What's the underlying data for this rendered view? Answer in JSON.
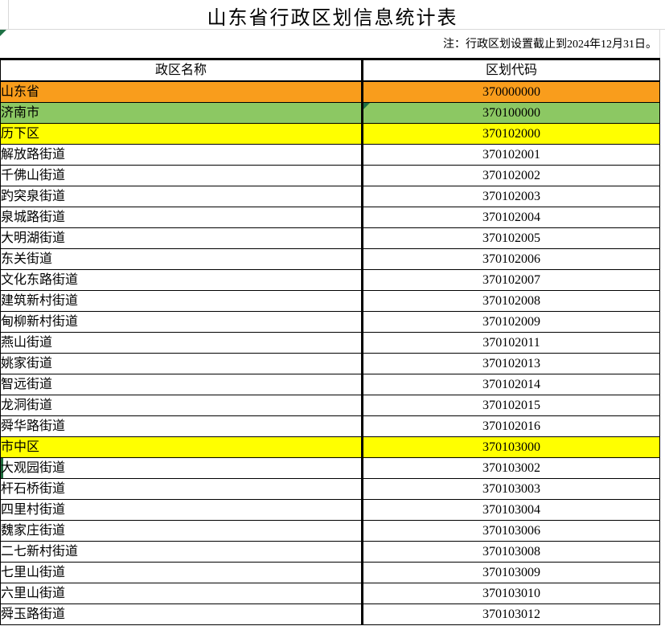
{
  "page": {
    "title": "山东省行政区划信息统计表",
    "note": "注：行政区划设置截止到2024年12月31日。"
  },
  "colors": {
    "orange": "#F99D1C",
    "green": "#8CC863",
    "yellow": "#FFFF00",
    "indicator_green": "#1E7145",
    "selection_green": "#1E6B3C",
    "grid_border": "#000000",
    "gridline_light": "#D9D9D9"
  },
  "table": {
    "headers": [
      "政区名称",
      "区划代码"
    ],
    "rows": [
      {
        "name": "山东省",
        "code": "370000000",
        "highlight": "orange"
      },
      {
        "name": "济南市",
        "code": "370100000",
        "highlight": "green",
        "error_indicator": true
      },
      {
        "name": "历下区",
        "code": "370102000",
        "highlight": "yellow"
      },
      {
        "name": "解放路街道",
        "code": "370102001"
      },
      {
        "name": "千佛山街道",
        "code": "370102002"
      },
      {
        "name": "趵突泉街道",
        "code": "370102003"
      },
      {
        "name": "泉城路街道",
        "code": "370102004"
      },
      {
        "name": "大明湖街道",
        "code": "370102005"
      },
      {
        "name": "东关街道",
        "code": "370102006"
      },
      {
        "name": "文化东路街道",
        "code": "370102007"
      },
      {
        "name": "建筑新村街道",
        "code": "370102008"
      },
      {
        "name": "甸柳新村街道",
        "code": "370102009"
      },
      {
        "name": "燕山街道",
        "code": "370102011"
      },
      {
        "name": "姚家街道",
        "code": "370102013"
      },
      {
        "name": "智远街道",
        "code": "370102014"
      },
      {
        "name": "龙洞街道",
        "code": "370102015"
      },
      {
        "name": "舜华路街道",
        "code": "370102016"
      },
      {
        "name": "市中区",
        "code": "370103000",
        "highlight": "yellow"
      },
      {
        "name": "大观园街道",
        "code": "370103002",
        "selected": true
      },
      {
        "name": "杆石桥街道",
        "code": "370103003"
      },
      {
        "name": "四里村街道",
        "code": "370103004"
      },
      {
        "name": "魏家庄街道",
        "code": "370103006"
      },
      {
        "name": "二七新村街道",
        "code": "370103008"
      },
      {
        "name": "七里山街道",
        "code": "370103009"
      },
      {
        "name": "六里山街道",
        "code": "370103010"
      },
      {
        "name": "舜玉路街道",
        "code": "370103012"
      }
    ]
  }
}
